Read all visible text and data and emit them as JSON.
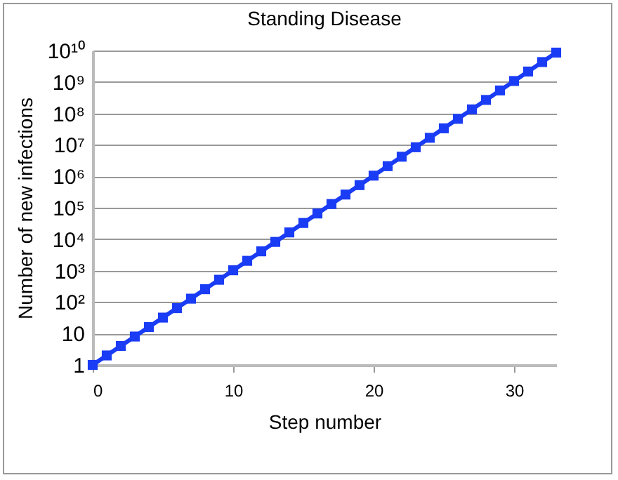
{
  "chart_data": {
    "type": "line",
    "title": "Standing Disease",
    "xlabel": "Step number",
    "ylabel": "Number of new infections",
    "x": [
      0,
      1,
      2,
      3,
      4,
      5,
      6,
      7,
      8,
      9,
      10,
      11,
      12,
      13,
      14,
      15,
      16,
      17,
      18,
      19,
      20,
      21,
      22,
      23,
      24,
      25,
      26,
      27,
      28,
      29,
      30,
      31,
      32,
      33
    ],
    "series": [
      {
        "color": "#1a3cf5",
        "values": [
          1,
          2,
          4,
          8,
          16,
          32,
          64,
          128,
          256,
          512,
          1024,
          2048,
          4096,
          8192,
          16384,
          32768,
          65536,
          131072,
          262144,
          524288,
          1048576,
          2097152,
          4194304,
          8388608,
          16777216,
          33554432,
          67108864,
          134217728,
          268435456,
          536870912,
          1073741824,
          2147483648,
          4294967296,
          8589934592
        ]
      }
    ],
    "log": "y",
    "xlim": [
      0,
      33
    ],
    "xticks": [
      0,
      10,
      20,
      30
    ],
    "ylim": [
      1,
      10000000000
    ],
    "yticks": [
      1,
      10,
      {
        "value": 100,
        "label": "10²"
      },
      {
        "value": 1000,
        "label": "10³"
      },
      {
        "value": 10000,
        "label": "10⁴"
      },
      {
        "value": 100000,
        "label": "10⁵"
      },
      {
        "value": 1000000,
        "label": "10⁶"
      },
      {
        "value": 10000000,
        "label": "10⁷"
      },
      {
        "value": 100000000,
        "label": "10⁸"
      },
      {
        "value": 1000000000,
        "label": "10⁹"
      },
      {
        "value": 10000000000,
        "label": "10¹⁰"
      }
    ],
    "grid": "y",
    "marker": "square",
    "line_style": "solid",
    "legend": false
  }
}
